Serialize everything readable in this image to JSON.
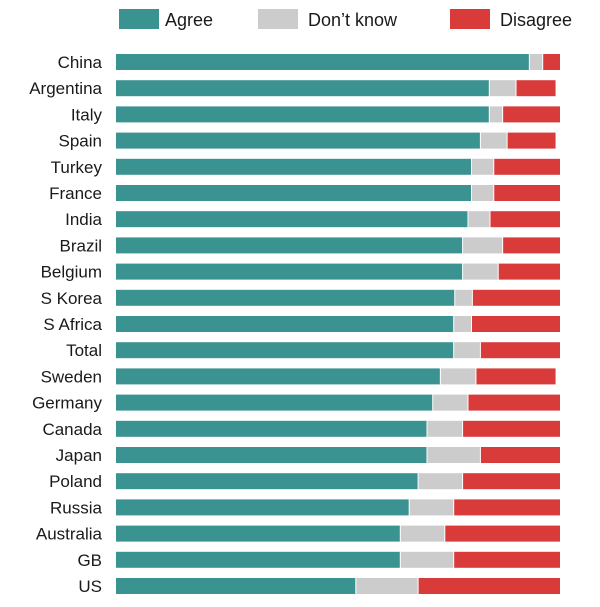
{
  "chart_data": {
    "type": "bar",
    "orientation": "horizontal",
    "stacked": true,
    "units": "percent",
    "title": "",
    "xlabel": "",
    "ylabel": "",
    "xlim": [
      0,
      100
    ],
    "grid": false,
    "legend": {
      "position": "top"
    },
    "categories": [
      "China",
      "Argentina",
      "Italy",
      "Spain",
      "Turkey",
      "France",
      "India",
      "Brazil",
      "Belgium",
      "S Korea",
      "S Africa",
      "Total",
      "Sweden",
      "Germany",
      "Canada",
      "Japan",
      "Poland",
      "Russia",
      "Australia",
      "GB",
      "US"
    ],
    "series": [
      {
        "name": "Agree",
        "color": "#3a9391",
        "values": [
          93,
          84,
          84,
          82,
          80,
          80,
          80,
          78,
          78,
          77,
          76,
          76,
          73,
          72,
          70,
          70,
          68,
          66,
          64,
          64,
          54
        ]
      },
      {
        "name": "Don’t know",
        "color": "#cccccc",
        "values": [
          3,
          6,
          3,
          6,
          5,
          5,
          5,
          9,
          8,
          4,
          4,
          6,
          8,
          8,
          8,
          12,
          10,
          10,
          10,
          12,
          14
        ]
      },
      {
        "name": "Disagree",
        "color": "#d93a3a",
        "values": [
          4,
          9,
          13,
          11,
          15,
          15,
          16,
          13,
          14,
          20,
          20,
          18,
          18,
          21,
          22,
          18,
          22,
          24,
          26,
          24,
          32
        ]
      }
    ]
  }
}
